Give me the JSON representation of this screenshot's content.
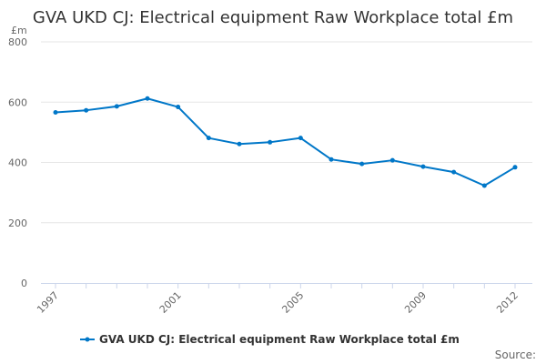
{
  "chart_data": {
    "type": "line",
    "title": "GVA UKD CJ: Electrical equipment Raw Workplace total £m",
    "ylabel": "£m",
    "xlabel": "",
    "ylim": [
      0,
      800
    ],
    "yticks": [
      0,
      200,
      400,
      600,
      800
    ],
    "xticks": [
      1997,
      2001,
      2005,
      2009,
      2012
    ],
    "grid": true,
    "legend_placement": "bottom",
    "x": [
      1997,
      1998,
      1999,
      2000,
      2001,
      2002,
      2003,
      2004,
      2005,
      2006,
      2007,
      2008,
      2009,
      2010,
      2011,
      2012
    ],
    "series": [
      {
        "name": "GVA UKD CJ: Electrical equipment Raw Workplace total £m",
        "color": "#0077c8",
        "values": [
          566,
          573,
          586,
          612,
          584,
          481,
          461,
          467,
          481,
          410,
          395,
          407,
          386,
          368,
          323,
          384
        ]
      }
    ],
    "source_label": "Source:"
  }
}
